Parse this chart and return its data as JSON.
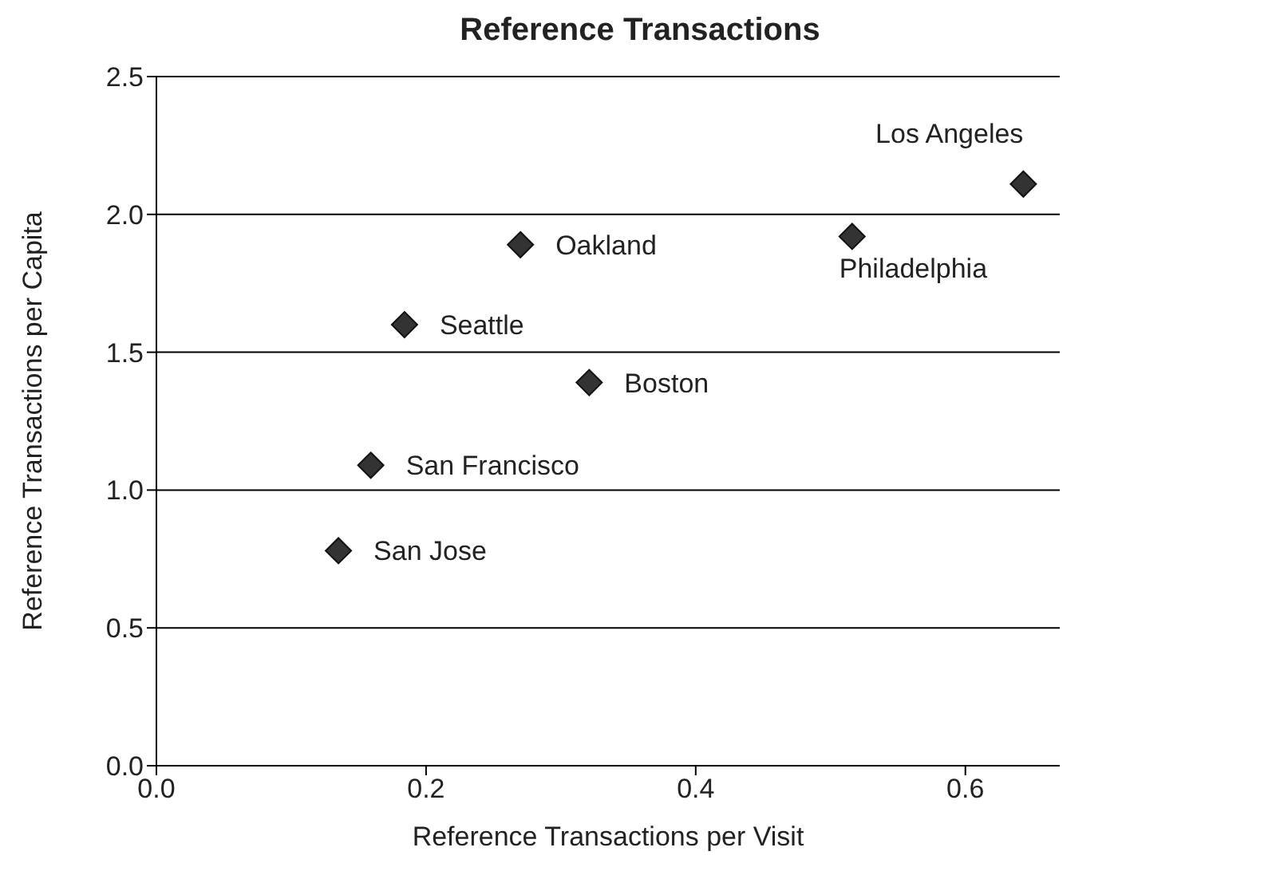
{
  "chart_data": {
    "type": "scatter",
    "title": "Reference Transactions",
    "xlabel": "Reference Transactions per Visit",
    "ylabel": "Reference Transactions per Capita",
    "x": [
      0.643,
      0.516,
      0.27,
      0.184,
      0.321,
      0.159,
      0.135
    ],
    "values": [
      2.11,
      1.92,
      1.89,
      1.6,
      1.39,
      1.09,
      0.78
    ],
    "color": "#333333",
    "marker": "diamond",
    "grid": "y",
    "legend": false,
    "xlim": [
      0,
      0.67
    ],
    "xticks": [
      {
        "value": 0,
        "label": "0.0"
      },
      0.2,
      0.4,
      0.6
    ],
    "ylim": [
      0,
      2.5
    ],
    "yticks": [
      {
        "value": 0,
        "label": "0.0"
      },
      0.5,
      {
        "value": 1,
        "label": "1.0"
      },
      1.5,
      {
        "value": 2,
        "label": "2.0"
      },
      2.5
    ],
    "annotations": [
      {
        "text": "Los Angeles",
        "x": 0.643,
        "y": 2.11
      },
      {
        "text": "Philadelphia",
        "x": 0.516,
        "y": 1.92
      },
      {
        "text": "Oakland",
        "x": 0.27,
        "y": 1.89
      },
      {
        "text": "Seattle",
        "x": 0.184,
        "y": 1.6
      },
      {
        "text": "Boston",
        "x": 0.321,
        "y": 1.39
      },
      {
        "text": "San Francisco",
        "x": 0.159,
        "y": 1.09
      },
      {
        "text": "San Jose",
        "x": 0.135,
        "y": 0.78
      }
    ]
  }
}
